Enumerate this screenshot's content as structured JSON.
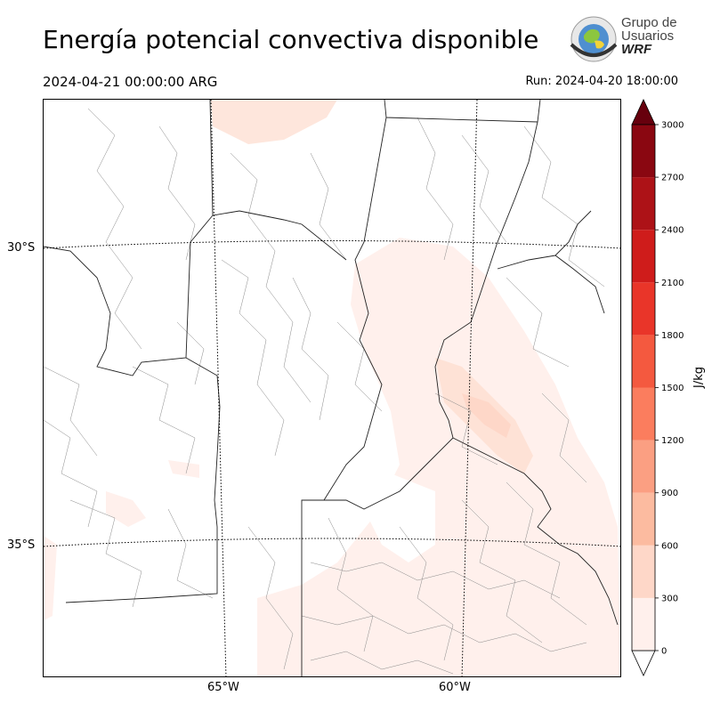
{
  "header": {
    "title": "Energía potencial convectiva disponible",
    "valid_time": "2024-04-21 00:00:00 ARG",
    "run": "Run: 2024-04-20 18:00:00"
  },
  "logo": {
    "line1": "Grupo de",
    "line2": "Usuarios",
    "line3": "WRF"
  },
  "map": {
    "lat_labels": [
      "30°S",
      "35°S"
    ],
    "lon_labels": [
      "65°W",
      "60°W"
    ]
  },
  "colorbar": {
    "label": "J/kg",
    "ticks": [
      "3000",
      "2700",
      "2400",
      "2100",
      "1800",
      "1500",
      "1200",
      "900",
      "600",
      "300",
      "0"
    ],
    "colors": [
      "#fff0ec",
      "#fed7c8",
      "#fcbba0",
      "#fb9f82",
      "#fb7d5e",
      "#f4593f",
      "#e93529",
      "#cf1c1b",
      "#ad1217",
      "#8a0711",
      "#67000d"
    ],
    "over_color": "#67000d",
    "under_color": "#ffffff"
  }
}
